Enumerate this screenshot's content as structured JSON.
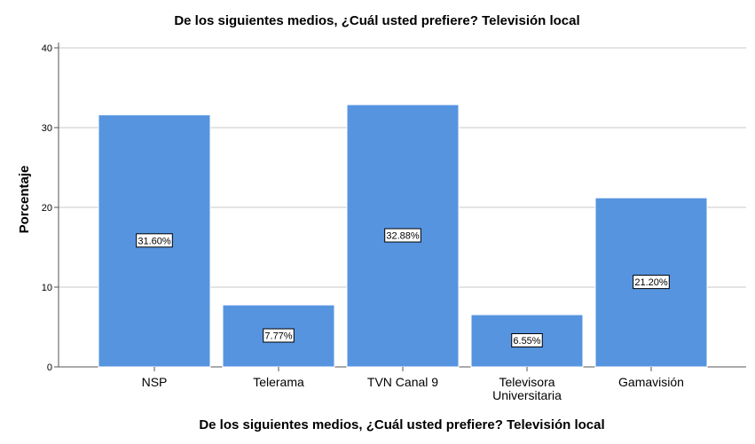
{
  "chart_data": {
    "type": "bar",
    "title": "De los siguientes medios, ¿Cuál usted prefiere? Televisión local",
    "xlabel": "De los siguientes medios, ¿Cuál usted prefiere? Televisión local",
    "ylabel": "Porcentaje",
    "categories": [
      [
        "NSP"
      ],
      [
        "Telerama"
      ],
      [
        "TVN Canal 9"
      ],
      [
        "Televisora",
        "Universitaria"
      ],
      [
        "Gamavisión"
      ]
    ],
    "values": [
      31.6,
      7.77,
      32.88,
      6.55,
      21.2
    ],
    "data_labels": [
      "31.60%",
      "7.77%",
      "32.88%",
      "6.55%",
      "21.20%"
    ],
    "ylim": [
      0,
      40
    ],
    "yticks": [
      0,
      10,
      20,
      30,
      40
    ],
    "ytick_labels": [
      "0",
      "10",
      "20",
      "30",
      "40"
    ],
    "grid": true,
    "bar_color": "#5694e0",
    "bar_edge_color": "#ffffff",
    "grid_color": "#c8c8c8",
    "axis_color": "#555555"
  }
}
